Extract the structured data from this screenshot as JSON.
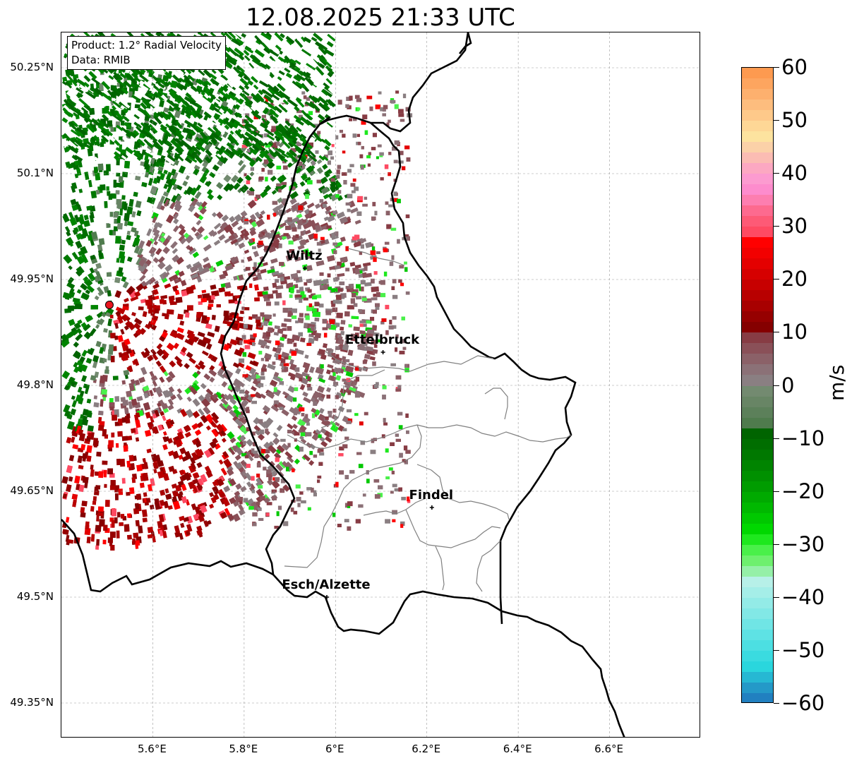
{
  "title": "12.08.2025 21:33 UTC",
  "info_box": {
    "product": "Product: 1.2° Radial Velocity",
    "data_source": "Data: RMIB"
  },
  "map": {
    "extent": {
      "lon_min": 5.4,
      "lon_max": 6.8,
      "lat_min": 49.3,
      "lat_max": 50.3
    },
    "lat_ticks": [
      {
        "value": 50.25,
        "label": "50.25°N"
      },
      {
        "value": 50.1,
        "label": "50.1°N"
      },
      {
        "value": 49.95,
        "label": "49.95°N"
      },
      {
        "value": 49.8,
        "label": "49.8°N"
      },
      {
        "value": 49.65,
        "label": "49.65°N"
      },
      {
        "value": 49.5,
        "label": "49.5°N"
      },
      {
        "value": 49.35,
        "label": "49.35°N"
      }
    ],
    "lon_ticks": [
      {
        "value": 5.6,
        "label": "5.6°E"
      },
      {
        "value": 5.8,
        "label": "5.8°E"
      },
      {
        "value": 6.0,
        "label": "6°E"
      },
      {
        "value": 6.2,
        "label": "6.2°E"
      },
      {
        "value": 6.4,
        "label": "6.4°E"
      },
      {
        "value": 6.6,
        "label": "6.6°E"
      }
    ],
    "grid": "dashed",
    "radar_site": {
      "lon": 5.505,
      "lat": 49.914,
      "color": "#e8141e"
    },
    "cities": [
      {
        "name": "Wiltz",
        "lon": 5.933,
        "lat": 49.966
      },
      {
        "name": "Ettelbruck",
        "lon": 6.104,
        "lat": 49.847
      },
      {
        "name": "Findel",
        "lon": 6.211,
        "lat": 49.627
      },
      {
        "name": "Esch/Alzette",
        "lon": 5.981,
        "lat": 49.5
      }
    ]
  },
  "colorbar": {
    "unit": "m/s",
    "min": -60,
    "max": 60,
    "ticks": [
      {
        "value": 60,
        "label": "60"
      },
      {
        "value": 50,
        "label": "50"
      },
      {
        "value": 40,
        "label": "40"
      },
      {
        "value": 30,
        "label": "30"
      },
      {
        "value": 20,
        "label": "20"
      },
      {
        "value": 10,
        "label": "10"
      },
      {
        "value": 0,
        "label": "0"
      },
      {
        "value": -10,
        "label": "−10"
      },
      {
        "value": -20,
        "label": "−20"
      },
      {
        "value": -30,
        "label": "−30"
      },
      {
        "value": -40,
        "label": "−40"
      },
      {
        "value": -50,
        "label": "−50"
      },
      {
        "value": -60,
        "label": "−60"
      }
    ],
    "steps": [
      {
        "from": 58,
        "to": 60,
        "color": "#fd9a50"
      },
      {
        "from": 56,
        "to": 58,
        "color": "#fda55f"
      },
      {
        "from": 54,
        "to": 56,
        "color": "#fdb06e"
      },
      {
        "from": 52,
        "to": 54,
        "color": "#fdbd7e"
      },
      {
        "from": 50,
        "to": 52,
        "color": "#fec98a"
      },
      {
        "from": 48,
        "to": 50,
        "color": "#fed796"
      },
      {
        "from": 46,
        "to": 48,
        "color": "#fde39f"
      },
      {
        "from": 44,
        "to": 46,
        "color": "#fbd1a8"
      },
      {
        "from": 42,
        "to": 44,
        "color": "#fbbcb3"
      },
      {
        "from": 40,
        "to": 42,
        "color": "#fca8c2"
      },
      {
        "from": 38,
        "to": 40,
        "color": "#fc9bd0"
      },
      {
        "from": 36,
        "to": 38,
        "color": "#fd8ccd"
      },
      {
        "from": 34,
        "to": 36,
        "color": "#fd7eb0"
      },
      {
        "from": 32,
        "to": 34,
        "color": "#fd6a8f"
      },
      {
        "from": 30,
        "to": 32,
        "color": "#fd5a76"
      },
      {
        "from": 28,
        "to": 30,
        "color": "#fe4a62"
      },
      {
        "from": 26,
        "to": 28,
        "color": "#ff0000"
      },
      {
        "from": 24,
        "to": 26,
        "color": "#f20000"
      },
      {
        "from": 22,
        "to": 24,
        "color": "#e40000"
      },
      {
        "from": 20,
        "to": 22,
        "color": "#d60000"
      },
      {
        "from": 18,
        "to": 20,
        "color": "#c70000"
      },
      {
        "from": 16,
        "to": 18,
        "color": "#b80000"
      },
      {
        "from": 14,
        "to": 16,
        "color": "#a80000"
      },
      {
        "from": 12,
        "to": 14,
        "color": "#960000"
      },
      {
        "from": 10,
        "to": 12,
        "color": "#850000"
      },
      {
        "from": 8,
        "to": 10,
        "color": "#873c44"
      },
      {
        "from": 6,
        "to": 8,
        "color": "#8a5058"
      },
      {
        "from": 4,
        "to": 6,
        "color": "#8b6168"
      },
      {
        "from": 2,
        "to": 4,
        "color": "#8b7177"
      },
      {
        "from": 0,
        "to": 2,
        "color": "#8a7f82"
      },
      {
        "from": -2,
        "to": 0,
        "color": "#738a70"
      },
      {
        "from": -4,
        "to": -2,
        "color": "#688565"
      },
      {
        "from": -6,
        "to": -4,
        "color": "#5c805a"
      },
      {
        "from": -8,
        "to": -6,
        "color": "#4f7b4d"
      },
      {
        "from": -10,
        "to": -8,
        "color": "#006400"
      },
      {
        "from": -12,
        "to": -10,
        "color": "#006e00"
      },
      {
        "from": -14,
        "to": -12,
        "color": "#007800"
      },
      {
        "from": -16,
        "to": -14,
        "color": "#008400"
      },
      {
        "from": -18,
        "to": -16,
        "color": "#009000"
      },
      {
        "from": -20,
        "to": -18,
        "color": "#009c00"
      },
      {
        "from": -22,
        "to": -20,
        "color": "#00aa00"
      },
      {
        "from": -24,
        "to": -22,
        "color": "#00b800"
      },
      {
        "from": -26,
        "to": -24,
        "color": "#00c800"
      },
      {
        "from": -28,
        "to": -26,
        "color": "#00d800"
      },
      {
        "from": -30,
        "to": -28,
        "color": "#1ee81e"
      },
      {
        "from": -32,
        "to": -30,
        "color": "#4af04a"
      },
      {
        "from": -34,
        "to": -32,
        "color": "#6ef06e"
      },
      {
        "from": -36,
        "to": -34,
        "color": "#95f0a8"
      },
      {
        "from": -38,
        "to": -36,
        "color": "#b7f0e8"
      },
      {
        "from": -40,
        "to": -38,
        "color": "#a5eee8"
      },
      {
        "from": -42,
        "to": -40,
        "color": "#93ebe7"
      },
      {
        "from": -44,
        "to": -42,
        "color": "#82e8e6"
      },
      {
        "from": -46,
        "to": -44,
        "color": "#70e5e5"
      },
      {
        "from": -48,
        "to": -46,
        "color": "#5ee2e4"
      },
      {
        "from": -50,
        "to": -48,
        "color": "#4cdfe2"
      },
      {
        "from": -52,
        "to": -50,
        "color": "#3adbe0"
      },
      {
        "from": -54,
        "to": -52,
        "color": "#2ad6dd"
      },
      {
        "from": -56,
        "to": -54,
        "color": "#26b8d3"
      },
      {
        "from": -58,
        "to": -56,
        "color": "#2499c8"
      },
      {
        "from": -60,
        "to": -58,
        "color": "#2180c0"
      }
    ]
  }
}
